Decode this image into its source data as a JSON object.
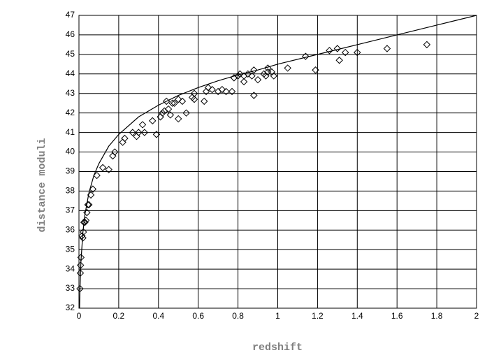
{
  "chart_data": {
    "type": "scatter",
    "xlabel": "redshift",
    "ylabel": "distance moduli",
    "xlim": [
      0,
      2
    ],
    "ylim": [
      32,
      47
    ],
    "xticks": [
      0,
      0.2,
      0.4,
      0.6,
      0.8,
      1,
      1.2,
      1.4,
      1.6,
      1.8,
      2
    ],
    "yticks": [
      32,
      33,
      34,
      35,
      36,
      37,
      38,
      39,
      40,
      41,
      42,
      43,
      44,
      45,
      46,
      47
    ],
    "grid": true,
    "marker": "diamond",
    "color": "#000000",
    "series": [
      {
        "color": "#000000",
        "x": [
          0.005,
          0.007,
          0.008,
          0.01,
          0.015,
          0.02,
          0.022,
          0.025,
          0.03,
          0.035,
          0.04,
          0.045,
          0.05,
          0.06,
          0.07,
          0.09,
          0.12,
          0.15,
          0.17,
          0.18,
          0.22,
          0.23,
          0.27,
          0.29,
          0.3,
          0.32,
          0.33,
          0.37,
          0.39,
          0.41,
          0.42,
          0.43,
          0.44,
          0.45,
          0.46,
          0.47,
          0.48,
          0.5,
          0.5,
          0.52,
          0.54,
          0.57,
          0.58,
          0.58,
          0.63,
          0.64,
          0.65,
          0.67,
          0.7,
          0.72,
          0.74,
          0.77,
          0.78,
          0.8,
          0.81,
          0.83,
          0.83,
          0.85,
          0.87,
          0.88,
          0.88,
          0.9,
          0.93,
          0.94,
          0.95,
          0.95,
          0.97,
          0.98,
          1.05,
          1.14,
          1.19,
          1.26,
          1.3,
          1.31,
          1.34,
          1.4,
          1.55,
          1.75
        ],
        "values": [
          33.0,
          33.8,
          34.2,
          34.6,
          35.7,
          35.6,
          35.9,
          36.4,
          36.4,
          36.5,
          36.9,
          37.3,
          37.3,
          37.8,
          38.1,
          38.8,
          39.2,
          39.1,
          39.8,
          40.0,
          40.5,
          40.7,
          41.0,
          40.8,
          41.0,
          41.4,
          41.0,
          41.6,
          40.9,
          41.8,
          42.0,
          42.1,
          42.6,
          42.2,
          41.9,
          42.5,
          42.5,
          42.7,
          41.7,
          42.6,
          42.0,
          42.8,
          42.7,
          43.0,
          42.6,
          43.1,
          43.3,
          43.2,
          43.1,
          43.2,
          43.1,
          43.1,
          43.8,
          43.9,
          44.0,
          43.6,
          43.9,
          44.0,
          43.9,
          44.2,
          42.9,
          43.7,
          44.0,
          43.9,
          44.1,
          44.3,
          44.1,
          43.9,
          44.3,
          44.9,
          44.2,
          45.2,
          45.3,
          44.7,
          45.1,
          45.1,
          45.3,
          45.5
        ]
      },
      {
        "type": "line",
        "color": "#000000",
        "x": [
          0.003,
          0.005,
          0.01,
          0.02,
          0.03,
          0.05,
          0.075,
          0.1,
          0.15,
          0.2,
          0.3,
          0.4,
          0.5,
          0.6,
          0.7,
          0.8,
          0.9,
          1.0,
          1.2,
          1.4,
          1.6,
          1.8,
          2.0
        ],
        "values": [
          32.0,
          32.9,
          34.4,
          35.9,
          36.8,
          37.9,
          38.8,
          39.4,
          40.3,
          40.9,
          41.8,
          42.4,
          42.9,
          43.3,
          43.65,
          43.95,
          44.2,
          44.5,
          45.0,
          45.5,
          46.0,
          46.5,
          47.0
        ]
      }
    ]
  }
}
